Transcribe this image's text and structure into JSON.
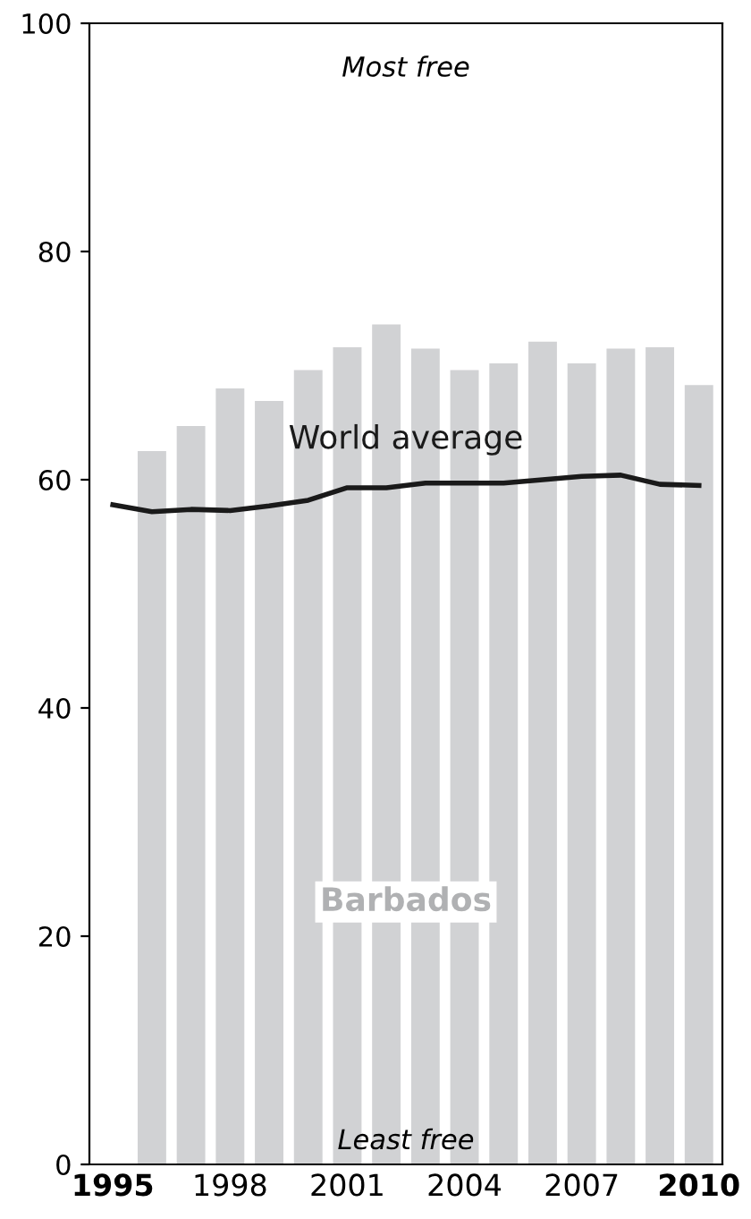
{
  "chart_data": {
    "type": "bar",
    "categories": [
      "1995",
      null,
      null,
      "1998",
      null,
      null,
      "2001",
      null,
      null,
      "2004",
      null,
      null,
      "2007",
      null,
      null,
      "2010"
    ],
    "series": [
      {
        "name": "Barbados",
        "color": "#d1d2d4",
        "values": [
          null,
          62.5,
          64.7,
          68.0,
          66.9,
          69.6,
          71.6,
          73.6,
          71.5,
          69.6,
          70.2,
          72.1,
          70.2,
          71.5,
          71.6,
          68.3
        ]
      },
      {
        "name": "World average",
        "type": "line",
        "color": "#1a1a1a",
        "values": [
          57.8,
          57.2,
          57.4,
          57.3,
          57.7,
          58.2,
          59.3,
          59.3,
          59.7,
          59.7,
          59.7,
          60.0,
          60.3,
          60.4,
          59.6,
          59.5
        ]
      }
    ],
    "annotations": [
      "Most free",
      "Least free"
    ],
    "ylim": [
      0,
      100
    ],
    "yticks": [
      0,
      20,
      40,
      60,
      80,
      100
    ],
    "grid": false,
    "legend": false
  }
}
